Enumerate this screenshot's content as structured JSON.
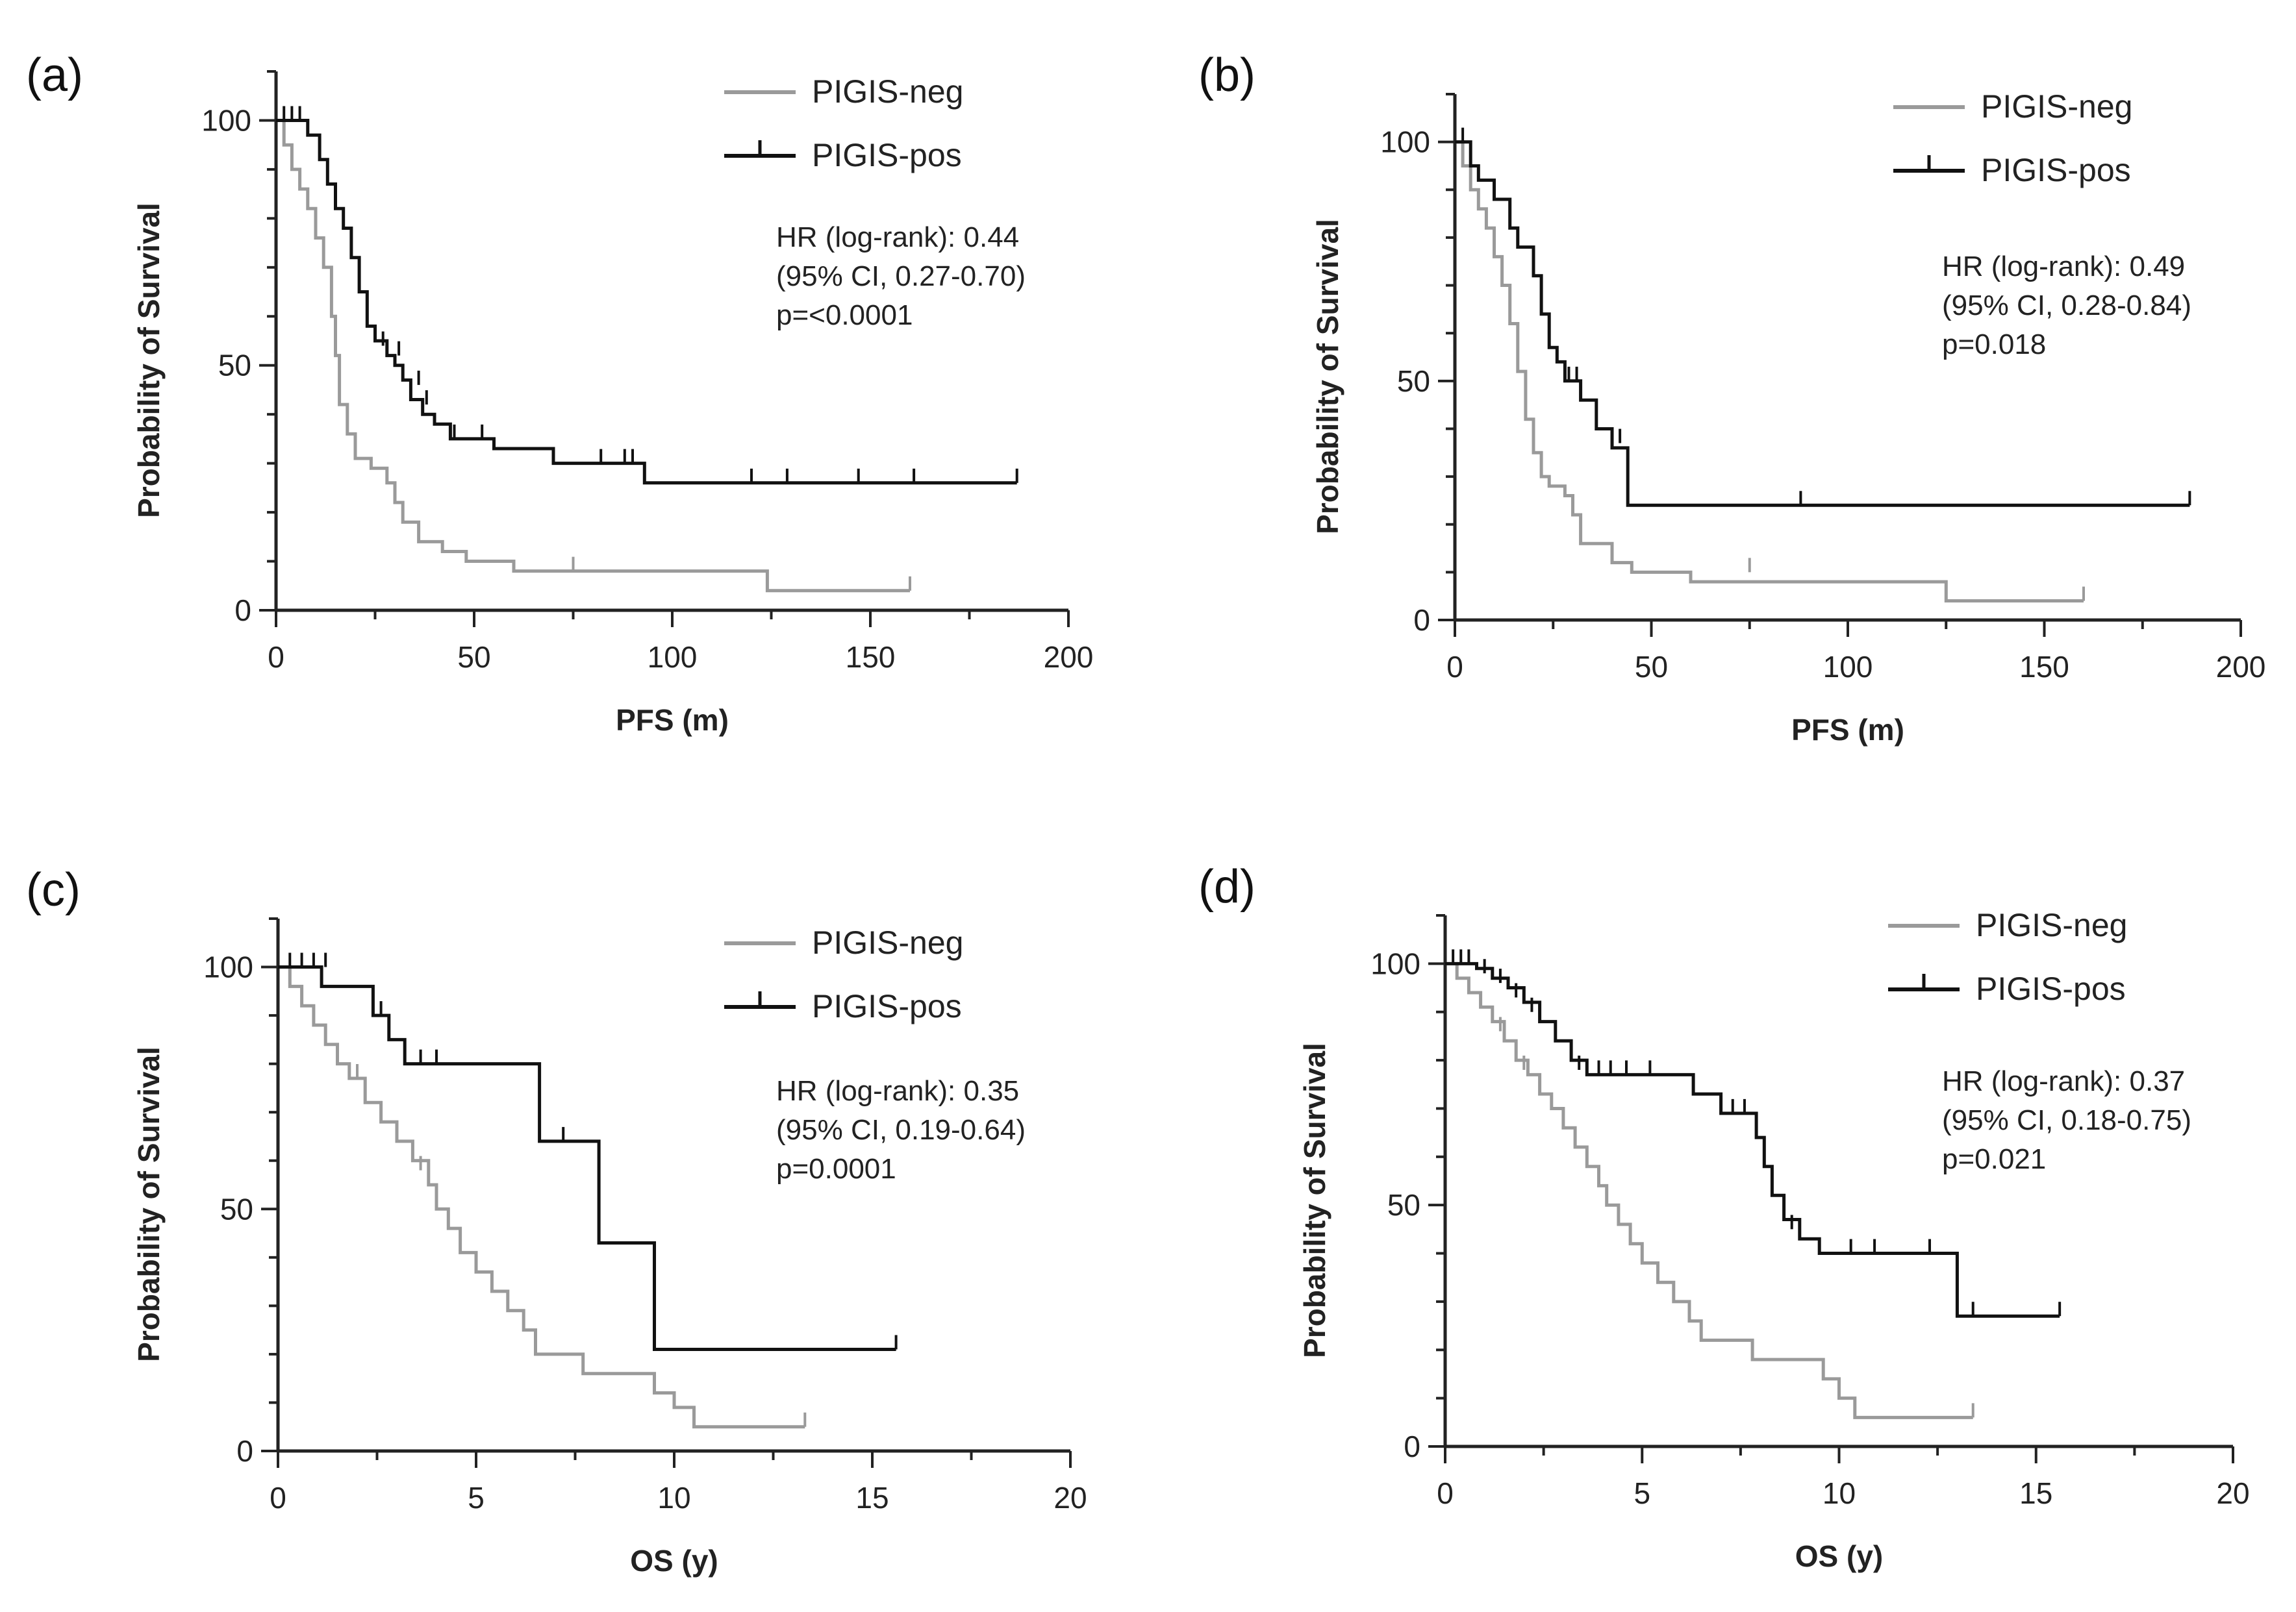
{
  "colors": {
    "neg": "#9a9a9a",
    "pos": "#111111",
    "axis": "#222222"
  },
  "chart_data": [
    {
      "type": "line",
      "subtype": "kaplan-meier",
      "panel_label": "(a)",
      "xlabel": "PFS (m)",
      "ylabel": "Probability of Survival",
      "xlim": [
        0,
        200
      ],
      "ylim": [
        0,
        110
      ],
      "xticks": [
        0,
        50,
        100,
        150,
        200
      ],
      "yticks": [
        0,
        50,
        100
      ],
      "legend": [
        "PIGIS-neg",
        "PIGIS-pos"
      ],
      "stats": [
        "HR (log-rank): 0.44",
        "(95% CI, 0.27-0.70)",
        "p=<0.0001"
      ],
      "series": [
        {
          "name": "PIGIS-neg",
          "color": "neg",
          "steps": [
            [
              0,
              100
            ],
            [
              2,
              95
            ],
            [
              4,
              90
            ],
            [
              6,
              86
            ],
            [
              8,
              82
            ],
            [
              10,
              76
            ],
            [
              12,
              70
            ],
            [
              14,
              60
            ],
            [
              15,
              52
            ],
            [
              16,
              42
            ],
            [
              18,
              36
            ],
            [
              20,
              31
            ],
            [
              24,
              29
            ],
            [
              28,
              26
            ],
            [
              30,
              22
            ],
            [
              32,
              18
            ],
            [
              36,
              14
            ],
            [
              42,
              12
            ],
            [
              48,
              10
            ],
            [
              60,
              8
            ],
            [
              92,
              8
            ],
            [
              124,
              4
            ],
            [
              160,
              4
            ]
          ],
          "censors": [
            [
              75,
              8
            ],
            [
              160,
              4
            ]
          ]
        },
        {
          "name": "PIGIS-pos",
          "color": "pos",
          "steps": [
            [
              0,
              100
            ],
            [
              8,
              97
            ],
            [
              11,
              92
            ],
            [
              13,
              87
            ],
            [
              15,
              82
            ],
            [
              17,
              78
            ],
            [
              19,
              72
            ],
            [
              21,
              65
            ],
            [
              23,
              58
            ],
            [
              25,
              55
            ],
            [
              28,
              52
            ],
            [
              30,
              50
            ],
            [
              32,
              47
            ],
            [
              34,
              43
            ],
            [
              37,
              40
            ],
            [
              40,
              38
            ],
            [
              44,
              35
            ],
            [
              55,
              33
            ],
            [
              70,
              30
            ],
            [
              93,
              26
            ],
            [
              187,
              26
            ]
          ],
          "censors": [
            [
              2,
              100
            ],
            [
              4,
              100
            ],
            [
              6,
              100
            ],
            [
              27,
              54
            ],
            [
              31,
              52
            ],
            [
              36,
              46
            ],
            [
              38,
              42
            ],
            [
              45,
              35
            ],
            [
              52,
              35
            ],
            [
              82,
              30
            ],
            [
              88,
              30
            ],
            [
              90,
              30
            ],
            [
              120,
              26
            ],
            [
              129,
              26
            ],
            [
              147,
              26
            ],
            [
              161,
              26
            ],
            [
              187,
              26
            ]
          ]
        }
      ]
    },
    {
      "type": "line",
      "subtype": "kaplan-meier",
      "panel_label": "(b)",
      "xlabel": "PFS (m)",
      "ylabel": "Probability of Survival",
      "xlim": [
        0,
        200
      ],
      "ylim": [
        0,
        110
      ],
      "xticks": [
        0,
        50,
        100,
        150,
        200
      ],
      "yticks": [
        0,
        50,
        100
      ],
      "legend": [
        "PIGIS-neg",
        "PIGIS-pos"
      ],
      "stats": [
        "HR (log-rank): 0.49",
        "(95% CI, 0.28-0.84)",
        "p=0.018"
      ],
      "series": [
        {
          "name": "PIGIS-neg",
          "color": "neg",
          "steps": [
            [
              0,
              100
            ],
            [
              2,
              95
            ],
            [
              4,
              90
            ],
            [
              6,
              86
            ],
            [
              8,
              82
            ],
            [
              10,
              76
            ],
            [
              12,
              70
            ],
            [
              14,
              62
            ],
            [
              16,
              52
            ],
            [
              18,
              42
            ],
            [
              20,
              35
            ],
            [
              22,
              30
            ],
            [
              24,
              28
            ],
            [
              28,
              26
            ],
            [
              30,
              22
            ],
            [
              32,
              16
            ],
            [
              40,
              12
            ],
            [
              45,
              10
            ],
            [
              60,
              8
            ],
            [
              90,
              8
            ],
            [
              125,
              4
            ],
            [
              160,
              4
            ]
          ],
          "censors": [
            [
              75,
              10
            ],
            [
              160,
              4
            ]
          ]
        },
        {
          "name": "PIGIS-pos",
          "color": "pos",
          "steps": [
            [
              0,
              100
            ],
            [
              4,
              95
            ],
            [
              6,
              92
            ],
            [
              10,
              88
            ],
            [
              14,
              82
            ],
            [
              16,
              78
            ],
            [
              20,
              72
            ],
            [
              22,
              64
            ],
            [
              24,
              57
            ],
            [
              26,
              54
            ],
            [
              28,
              50
            ],
            [
              32,
              46
            ],
            [
              36,
              40
            ],
            [
              40,
              36
            ],
            [
              44,
              24
            ],
            [
              187,
              24
            ]
          ],
          "censors": [
            [
              2,
              100
            ],
            [
              29,
              50
            ],
            [
              31,
              50
            ],
            [
              42,
              37
            ],
            [
              88,
              24
            ],
            [
              187,
              24
            ]
          ]
        }
      ]
    },
    {
      "type": "line",
      "subtype": "kaplan-meier",
      "panel_label": "(c)",
      "xlabel": "OS (y)",
      "ylabel": "Probability of Survival",
      "xlim": [
        0,
        20
      ],
      "ylim": [
        0,
        110
      ],
      "xticks": [
        0,
        5,
        10,
        15,
        20
      ],
      "yticks": [
        0,
        50,
        100
      ],
      "legend": [
        "PIGIS-neg",
        "PIGIS-pos"
      ],
      "stats": [
        "HR (log-rank): 0.35",
        "(95% CI, 0.19-0.64)",
        "p=0.0001"
      ],
      "series": [
        {
          "name": "PIGIS-neg",
          "color": "neg",
          "steps": [
            [
              0,
              100
            ],
            [
              0.3,
              96
            ],
            [
              0.6,
              92
            ],
            [
              0.9,
              88
            ],
            [
              1.2,
              84
            ],
            [
              1.5,
              80
            ],
            [
              1.8,
              77
            ],
            [
              2.2,
              72
            ],
            [
              2.6,
              68
            ],
            [
              3.0,
              64
            ],
            [
              3.4,
              60
            ],
            [
              3.8,
              55
            ],
            [
              4.0,
              50
            ],
            [
              4.3,
              46
            ],
            [
              4.6,
              41
            ],
            [
              5.0,
              37
            ],
            [
              5.4,
              33
            ],
            [
              5.8,
              29
            ],
            [
              6.2,
              25
            ],
            [
              6.5,
              20
            ],
            [
              7.7,
              16
            ],
            [
              9.5,
              12
            ],
            [
              10.0,
              9
            ],
            [
              10.5,
              5
            ],
            [
              13.3,
              5
            ]
          ],
          "censors": [
            [
              2.0,
              77
            ],
            [
              3.6,
              58
            ],
            [
              6.2,
              25
            ],
            [
              13.3,
              5
            ]
          ]
        },
        {
          "name": "PIGIS-pos",
          "color": "pos",
          "steps": [
            [
              0,
              100
            ],
            [
              1.1,
              96
            ],
            [
              2.4,
              90
            ],
            [
              2.8,
              85
            ],
            [
              3.2,
              80
            ],
            [
              6.6,
              64
            ],
            [
              8.1,
              43
            ],
            [
              9.5,
              21
            ],
            [
              15.6,
              21
            ]
          ],
          "censors": [
            [
              0.3,
              100
            ],
            [
              0.6,
              100
            ],
            [
              0.9,
              100
            ],
            [
              1.2,
              100
            ],
            [
              2.6,
              90
            ],
            [
              3.6,
              80
            ],
            [
              4.0,
              80
            ],
            [
              7.2,
              64
            ],
            [
              15.6,
              21
            ]
          ]
        }
      ]
    },
    {
      "type": "line",
      "subtype": "kaplan-meier",
      "panel_label": "(d)",
      "xlabel": "OS (y)",
      "ylabel": "Probability of Survival",
      "xlim": [
        0,
        20
      ],
      "ylim": [
        0,
        110
      ],
      "xticks": [
        0,
        5,
        10,
        15,
        20
      ],
      "yticks": [
        0,
        50,
        100
      ],
      "legend": [
        "PIGIS-neg",
        "PIGIS-pos"
      ],
      "stats": [
        "HR (log-rank): 0.37",
        "(95% CI, 0.18-0.75)",
        "p=0.021"
      ],
      "series": [
        {
          "name": "PIGIS-neg",
          "color": "neg",
          "steps": [
            [
              0,
              100
            ],
            [
              0.3,
              97
            ],
            [
              0.6,
              94
            ],
            [
              0.9,
              91
            ],
            [
              1.2,
              88
            ],
            [
              1.5,
              84
            ],
            [
              1.8,
              80
            ],
            [
              2.1,
              77
            ],
            [
              2.4,
              73
            ],
            [
              2.7,
              70
            ],
            [
              3.0,
              66
            ],
            [
              3.3,
              62
            ],
            [
              3.6,
              58
            ],
            [
              3.9,
              54
            ],
            [
              4.1,
              50
            ],
            [
              4.4,
              46
            ],
            [
              4.7,
              42
            ],
            [
              5.0,
              38
            ],
            [
              5.4,
              34
            ],
            [
              5.8,
              30
            ],
            [
              6.2,
              26
            ],
            [
              6.5,
              22
            ],
            [
              7.8,
              18
            ],
            [
              9.6,
              14
            ],
            [
              10.0,
              10
            ],
            [
              10.4,
              6
            ],
            [
              13.4,
              6
            ]
          ],
          "censors": [
            [
              1.4,
              86
            ],
            [
              2.0,
              78
            ],
            [
              13.4,
              6
            ]
          ]
        },
        {
          "name": "PIGIS-pos",
          "color": "pos",
          "steps": [
            [
              0,
              100
            ],
            [
              0.8,
              99
            ],
            [
              1.2,
              97
            ],
            [
              1.6,
              95
            ],
            [
              2.0,
              92
            ],
            [
              2.4,
              88
            ],
            [
              2.8,
              84
            ],
            [
              3.2,
              80
            ],
            [
              3.6,
              77
            ],
            [
              6.3,
              73
            ],
            [
              7.0,
              69
            ],
            [
              7.9,
              64
            ],
            [
              8.1,
              58
            ],
            [
              8.3,
              52
            ],
            [
              8.6,
              47
            ],
            [
              9.0,
              43
            ],
            [
              9.5,
              40
            ],
            [
              13.0,
              27
            ],
            [
              15.6,
              27
            ]
          ],
          "censors": [
            [
              0.2,
              100
            ],
            [
              0.4,
              100
            ],
            [
              0.6,
              100
            ],
            [
              1.0,
              98
            ],
            [
              1.4,
              96
            ],
            [
              1.8,
              93
            ],
            [
              2.2,
              90
            ],
            [
              3.4,
              78
            ],
            [
              3.9,
              77
            ],
            [
              4.2,
              77
            ],
            [
              4.6,
              77
            ],
            [
              5.2,
              77
            ],
            [
              7.3,
              69
            ],
            [
              7.6,
              69
            ],
            [
              8.8,
              45
            ],
            [
              10.3,
              40
            ],
            [
              10.9,
              40
            ],
            [
              12.3,
              40
            ],
            [
              13.4,
              27
            ],
            [
              15.6,
              27
            ]
          ]
        }
      ]
    }
  ]
}
